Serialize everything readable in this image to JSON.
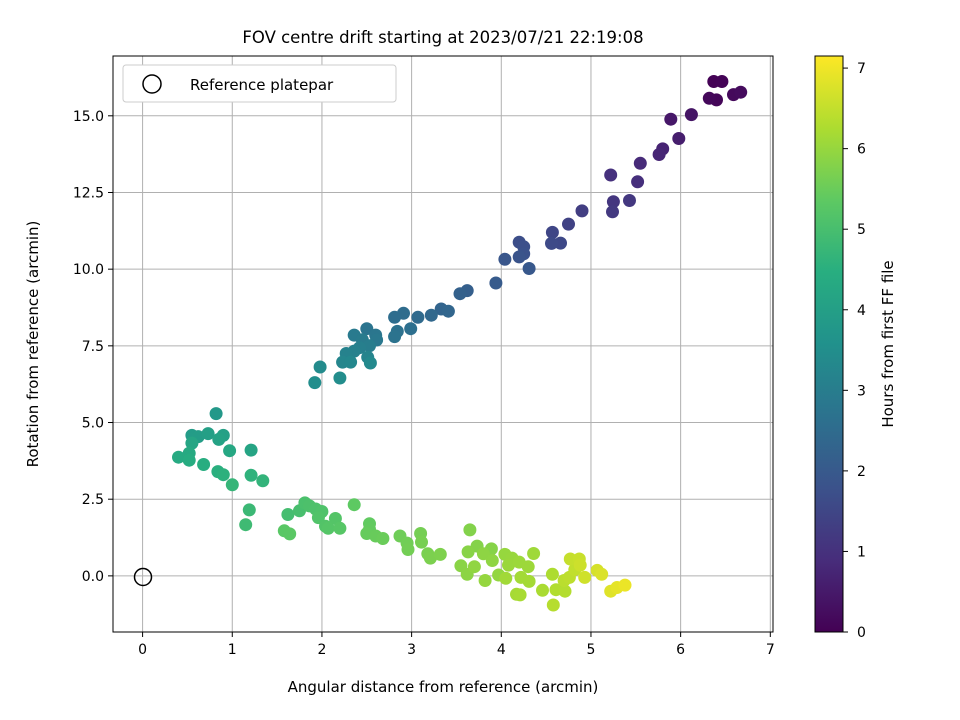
{
  "chart_data": {
    "type": "scatter",
    "title": "FOV centre drift starting at 2023/07/21 22:19:08",
    "xlabel": "Angular distance from reference (arcmin)",
    "ylabel": "Rotation from reference (arcmin)",
    "xlim": [
      -0.33,
      7.03
    ],
    "ylim": [
      -1.83,
      16.95
    ],
    "xticks": [
      0,
      1,
      2,
      3,
      4,
      5,
      6,
      7
    ],
    "xtick_labels": [
      "0",
      "1",
      "2",
      "3",
      "4",
      "5",
      "6",
      "7"
    ],
    "yticks": [
      0.0,
      2.5,
      5.0,
      7.5,
      10.0,
      12.5,
      15.0
    ],
    "ytick_labels": [
      "0.0",
      "2.5",
      "5.0",
      "7.5",
      "10.0",
      "12.5",
      "15.0"
    ],
    "grid": true,
    "colormap": "viridis",
    "colorbar": {
      "label": "Hours from first FF file",
      "range": [
        0,
        7.15
      ],
      "ticks": [
        0,
        1,
        2,
        3,
        4,
        5,
        6,
        7
      ],
      "tick_labels": [
        "0",
        "1",
        "2",
        "3",
        "4",
        "5",
        "6",
        "7"
      ]
    },
    "legend": {
      "position": "top-left",
      "entries": [
        "Reference platepar"
      ]
    },
    "reference_point": {
      "x": 0,
      "y": 0,
      "label": "Reference platepar"
    },
    "points": [
      [
        6.37,
        16.12,
        0.03
      ],
      [
        6.46,
        16.12,
        0.05
      ],
      [
        6.4,
        15.52,
        0.1
      ],
      [
        6.32,
        15.57,
        0.14
      ],
      [
        6.59,
        15.69,
        0.16
      ],
      [
        6.67,
        15.77,
        0.2
      ],
      [
        6.12,
        15.04,
        0.4
      ],
      [
        5.89,
        14.89,
        0.45
      ],
      [
        5.98,
        14.26,
        0.58
      ],
      [
        5.8,
        13.92,
        0.7
      ],
      [
        5.76,
        13.74,
        0.75
      ],
      [
        5.55,
        13.45,
        0.85
      ],
      [
        5.52,
        12.85,
        0.95
      ],
      [
        5.22,
        13.07,
        1.0
      ],
      [
        5.25,
        12.2,
        1.1
      ],
      [
        5.43,
        12.24,
        1.15
      ],
      [
        5.24,
        11.87,
        1.18
      ],
      [
        4.9,
        11.9,
        1.3
      ],
      [
        4.75,
        11.47,
        1.4
      ],
      [
        4.57,
        11.2,
        1.5
      ],
      [
        4.66,
        10.85,
        1.55
      ],
      [
        4.56,
        10.84,
        1.6
      ],
      [
        4.2,
        10.88,
        1.7
      ],
      [
        4.25,
        10.73,
        1.75
      ],
      [
        4.25,
        10.5,
        1.8
      ],
      [
        4.2,
        10.4,
        1.85
      ],
      [
        4.04,
        10.32,
        1.9
      ],
      [
        4.31,
        10.02,
        1.95
      ],
      [
        3.94,
        9.55,
        2.05
      ],
      [
        3.62,
        9.3,
        2.15
      ],
      [
        3.54,
        9.2,
        2.2
      ],
      [
        3.33,
        8.7,
        2.3
      ],
      [
        3.41,
        8.63,
        2.35
      ],
      [
        3.22,
        8.5,
        2.4
      ],
      [
        3.07,
        8.43,
        2.45
      ],
      [
        2.91,
        8.56,
        2.5
      ],
      [
        2.81,
        8.43,
        2.55
      ],
      [
        2.99,
        8.06,
        2.6
      ],
      [
        2.84,
        7.97,
        2.65
      ],
      [
        2.81,
        7.8,
        2.7
      ],
      [
        2.5,
        8.06,
        2.75
      ],
      [
        2.6,
        7.85,
        2.8
      ],
      [
        2.61,
        7.69,
        2.85
      ],
      [
        2.36,
        7.85,
        2.9
      ],
      [
        2.45,
        7.7,
        2.95
      ],
      [
        2.53,
        7.5,
        3.0
      ],
      [
        2.42,
        7.44,
        3.05
      ],
      [
        2.36,
        7.33,
        3.1
      ],
      [
        2.27,
        7.25,
        3.15
      ],
      [
        2.51,
        7.13,
        3.2
      ],
      [
        2.23,
        6.97,
        3.25
      ],
      [
        2.32,
        6.97,
        3.3
      ],
      [
        2.54,
        6.94,
        3.35
      ],
      [
        1.98,
        6.81,
        3.4
      ],
      [
        2.2,
        6.45,
        3.45
      ],
      [
        1.92,
        6.3,
        3.5
      ],
      [
        0.82,
        5.29,
        3.8
      ],
      [
        0.55,
        4.58,
        3.9
      ],
      [
        0.62,
        4.54,
        3.95
      ],
      [
        0.73,
        4.64,
        4.0
      ],
      [
        0.9,
        4.58,
        4.05
      ],
      [
        0.85,
        4.45,
        4.1
      ],
      [
        1.21,
        4.1,
        4.15
      ],
      [
        0.55,
        4.33,
        4.2
      ],
      [
        0.97,
        4.08,
        4.25
      ],
      [
        0.52,
        4.0,
        4.3
      ],
      [
        0.4,
        3.87,
        4.35
      ],
      [
        0.52,
        3.77,
        4.4
      ],
      [
        0.68,
        3.63,
        4.45
      ],
      [
        0.84,
        3.4,
        4.5
      ],
      [
        0.9,
        3.3,
        4.55
      ],
      [
        1.21,
        3.28,
        4.6
      ],
      [
        1.34,
        3.1,
        4.65
      ],
      [
        1.0,
        2.97,
        4.7
      ],
      [
        1.19,
        2.15,
        4.8
      ],
      [
        1.15,
        1.67,
        4.85
      ],
      [
        1.62,
        2.0,
        4.95
      ],
      [
        1.75,
        2.12,
        5.0
      ],
      [
        1.81,
        2.38,
        5.05
      ],
      [
        1.86,
        2.28,
        5.08
      ],
      [
        1.93,
        2.18,
        5.1
      ],
      [
        2.0,
        2.1,
        5.12
      ],
      [
        1.96,
        1.9,
        5.15
      ],
      [
        2.04,
        1.62,
        5.18
      ],
      [
        2.15,
        1.87,
        5.2
      ],
      [
        2.07,
        1.55,
        5.22
      ],
      [
        2.2,
        1.55,
        5.25
      ],
      [
        1.58,
        1.47,
        5.28
      ],
      [
        1.64,
        1.37,
        5.3
      ],
      [
        2.36,
        2.32,
        5.35
      ],
      [
        2.53,
        1.7,
        5.4
      ],
      [
        2.53,
        1.52,
        5.42
      ],
      [
        2.5,
        1.38,
        5.45
      ],
      [
        2.6,
        1.3,
        5.48
      ],
      [
        2.68,
        1.22,
        5.5
      ],
      [
        2.87,
        1.3,
        5.55
      ],
      [
        2.95,
        1.07,
        5.58
      ],
      [
        2.96,
        0.86,
        5.6
      ],
      [
        3.1,
        1.38,
        5.62
      ],
      [
        3.11,
        1.1,
        5.65
      ],
      [
        3.18,
        0.72,
        5.68
      ],
      [
        3.21,
        0.58,
        5.7
      ],
      [
        3.32,
        0.7,
        5.72
      ],
      [
        3.65,
        1.5,
        5.78
      ],
      [
        3.73,
        0.97,
        5.8
      ],
      [
        3.89,
        0.88,
        5.82
      ],
      [
        3.63,
        0.78,
        5.84
      ],
      [
        3.55,
        0.33,
        5.86
      ],
      [
        3.62,
        0.05,
        5.88
      ],
      [
        3.8,
        0.72,
        5.9
      ],
      [
        3.9,
        0.5,
        5.92
      ],
      [
        3.7,
        0.3,
        5.94
      ],
      [
        3.97,
        0.03,
        5.96
      ],
      [
        3.82,
        -0.15,
        5.98
      ],
      [
        4.04,
        0.7,
        6.0
      ],
      [
        4.12,
        0.58,
        6.02
      ],
      [
        4.08,
        0.35,
        6.04
      ],
      [
        4.2,
        0.45,
        6.06
      ],
      [
        4.3,
        0.3,
        6.08
      ],
      [
        4.36,
        0.73,
        6.1
      ],
      [
        4.05,
        -0.08,
        6.12
      ],
      [
        4.22,
        -0.05,
        6.14
      ],
      [
        4.31,
        -0.18,
        6.16
      ],
      [
        4.17,
        -0.6,
        6.18
      ],
      [
        4.21,
        -0.62,
        6.2
      ],
      [
        4.46,
        -0.47,
        6.22
      ],
      [
        4.57,
        0.05,
        6.26
      ],
      [
        4.61,
        -0.45,
        6.3
      ],
      [
        4.71,
        -0.5,
        6.34
      ],
      [
        4.58,
        -0.95,
        6.36
      ],
      [
        4.7,
        -0.15,
        6.4
      ],
      [
        4.76,
        -0.05,
        6.44
      ],
      [
        4.82,
        0.2,
        6.48
      ],
      [
        4.77,
        0.55,
        6.52
      ],
      [
        4.87,
        0.55,
        6.56
      ],
      [
        4.88,
        0.35,
        6.6
      ],
      [
        4.93,
        -0.05,
        6.64
      ],
      [
        5.07,
        0.18,
        6.7
      ],
      [
        5.12,
        0.05,
        6.76
      ],
      [
        5.22,
        -0.5,
        6.82
      ],
      [
        5.29,
        -0.38,
        6.88
      ],
      [
        5.38,
        -0.3,
        6.95
      ]
    ]
  }
}
